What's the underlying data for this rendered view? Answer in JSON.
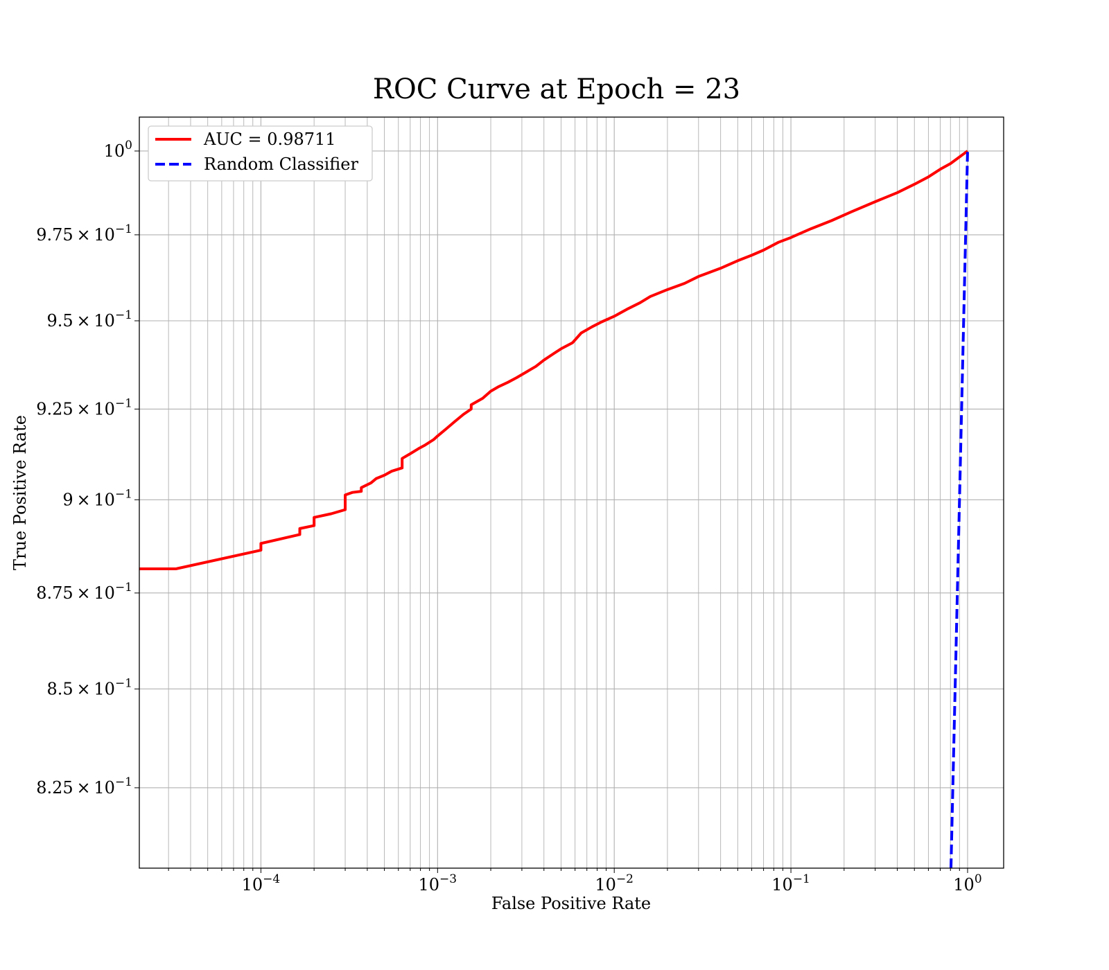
{
  "chart_data": {
    "type": "line",
    "title": "ROC Curve at Epoch = 23",
    "xlabel": "False Positive Rate",
    "ylabel": "True Positive Rate",
    "x_scale": "log",
    "y_scale": "log",
    "xlim": [
      2.05e-05,
      1.6
    ],
    "ylim": [
      0.8052,
      1.0103
    ],
    "grid": "on (major and minor)",
    "legend_position": "upper left",
    "x_ticks": [
      {
        "value": 0.0001,
        "base": "10",
        "exp": "−4"
      },
      {
        "value": 0.001,
        "base": "10",
        "exp": "−3"
      },
      {
        "value": 0.01,
        "base": "10",
        "exp": "−2"
      },
      {
        "value": 0.1,
        "base": "10",
        "exp": "−1"
      },
      {
        "value": 1,
        "base": "10",
        "exp": "0"
      }
    ],
    "y_ticks": [
      {
        "value": 1.0,
        "mant": "",
        "base": "10",
        "exp": "0"
      },
      {
        "value": 0.975,
        "mant": "9.75 × ",
        "base": "10",
        "exp": "−1"
      },
      {
        "value": 0.95,
        "mant": "9.5 × ",
        "base": "10",
        "exp": "−1"
      },
      {
        "value": 0.925,
        "mant": "9.25 × ",
        "base": "10",
        "exp": "−1"
      },
      {
        "value": 0.9,
        "mant": "9 × ",
        "base": "10",
        "exp": "−1"
      },
      {
        "value": 0.875,
        "mant": "8.75 × ",
        "base": "10",
        "exp": "−1"
      },
      {
        "value": 0.85,
        "mant": "8.5 × ",
        "base": "10",
        "exp": "−1"
      },
      {
        "value": 0.825,
        "mant": "8.25 × ",
        "base": "10",
        "exp": "−1"
      }
    ],
    "series": [
      {
        "name": "AUC = 0.98711",
        "color": "#ff0000",
        "style": "solid",
        "points": [
          [
            2.05e-05,
            0.8814
          ],
          [
            3.3e-05,
            0.8814
          ],
          [
            0.0001,
            0.8864
          ],
          [
            0.0001,
            0.8882
          ],
          [
            0.000166,
            0.8906
          ],
          [
            0.000166,
            0.8922
          ],
          [
            0.0002,
            0.893
          ],
          [
            0.0002,
            0.8952
          ],
          [
            0.00025,
            0.8962
          ],
          [
            0.0003,
            0.8973
          ],
          [
            0.0003,
            0.9013
          ],
          [
            0.00033,
            0.902
          ],
          [
            0.00037,
            0.9023
          ],
          [
            0.00037,
            0.9033
          ],
          [
            0.00042,
            0.9046
          ],
          [
            0.00045,
            0.9058
          ],
          [
            0.0005,
            0.9067
          ],
          [
            0.00055,
            0.9078
          ],
          [
            0.00063,
            0.9087
          ],
          [
            0.00063,
            0.9113
          ],
          [
            0.0007,
            0.9126
          ],
          [
            0.00078,
            0.914
          ],
          [
            0.00085,
            0.915
          ],
          [
            0.00095,
            0.9165
          ],
          [
            0.001,
            0.9175
          ],
          [
            0.00112,
            0.9195
          ],
          [
            0.00125,
            0.9215
          ],
          [
            0.0014,
            0.9235
          ],
          [
            0.00155,
            0.925
          ],
          [
            0.00155,
            0.9262
          ],
          [
            0.0018,
            0.928
          ],
          [
            0.002,
            0.93
          ],
          [
            0.0022,
            0.9312
          ],
          [
            0.0025,
            0.9325
          ],
          [
            0.0028,
            0.9338
          ],
          [
            0.0032,
            0.9355
          ],
          [
            0.0036,
            0.937
          ],
          [
            0.004,
            0.9388
          ],
          [
            0.0045,
            0.9405
          ],
          [
            0.005,
            0.942
          ],
          [
            0.0058,
            0.9437
          ],
          [
            0.0065,
            0.9465
          ],
          [
            0.0075,
            0.9483
          ],
          [
            0.0085,
            0.9497
          ],
          [
            0.01,
            0.9513
          ],
          [
            0.012,
            0.9535
          ],
          [
            0.014,
            0.9552
          ],
          [
            0.016,
            0.957
          ],
          [
            0.02,
            0.959
          ],
          [
            0.025,
            0.9608
          ],
          [
            0.03,
            0.9628
          ],
          [
            0.04,
            0.9652
          ],
          [
            0.05,
            0.9674
          ],
          [
            0.06,
            0.969
          ],
          [
            0.07,
            0.9705
          ],
          [
            0.085,
            0.9728
          ],
          [
            0.1,
            0.9742
          ],
          [
            0.13,
            0.9768
          ],
          [
            0.17,
            0.9792
          ],
          [
            0.22,
            0.9818
          ],
          [
            0.3,
            0.9848
          ],
          [
            0.4,
            0.9875
          ],
          [
            0.5,
            0.99
          ],
          [
            0.6,
            0.9922
          ],
          [
            0.7,
            0.9945
          ],
          [
            0.8,
            0.9962
          ],
          [
            1.0,
            1.0
          ]
        ]
      },
      {
        "name": "Random Classifier",
        "color": "#0000ff",
        "style": "dashed",
        "points": [
          [
            0.8052,
            0.8052
          ],
          [
            1.0,
            1.0
          ]
        ]
      }
    ]
  }
}
